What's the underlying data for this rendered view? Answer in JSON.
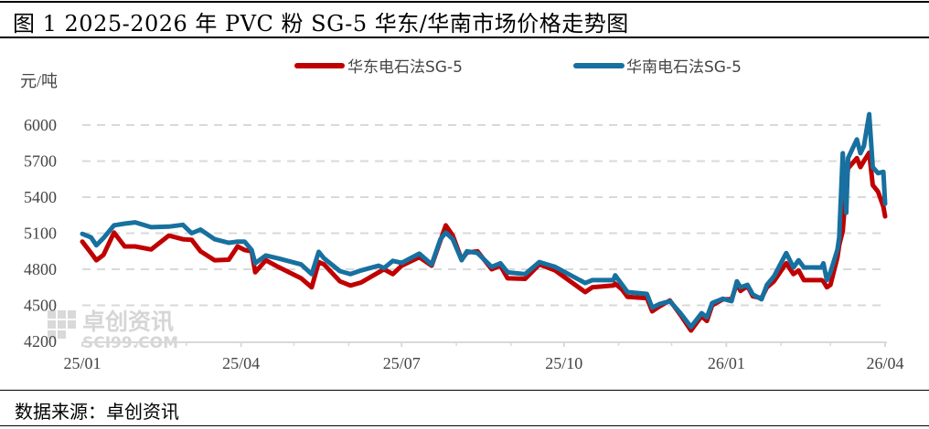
{
  "title": "图 1 2025-2026 年 PVC 粉 SG-5 华东/华南市场价格走势图",
  "footer": "数据来源：卓创资讯",
  "watermark": {
    "name": "卓创资讯",
    "url": "SCI99.COM"
  },
  "chart_data": {
    "type": "line",
    "title": "图 1 2025-2026 年 PVC 粉 SG-5 华东/华南市场价格走势图",
    "ylabel": "元/吨",
    "ylim": [
      4200,
      6000
    ],
    "yticks": [
      "4200",
      "4500",
      "4800",
      "5100",
      "5400",
      "5700",
      "6000"
    ],
    "xticks": [
      {
        "label": "25/01",
        "date": "2025-01-01"
      },
      {
        "label": "25/04",
        "date": "2025-04-01"
      },
      {
        "label": "25/07",
        "date": "2025-07-01"
      },
      {
        "label": "25/10",
        "date": "2025-10-01"
      },
      {
        "label": "26/01",
        "date": "2026-01-01"
      },
      {
        "label": "26/04",
        "date": "2026-04-01"
      }
    ],
    "xlim": [
      "2025-01-01",
      "2026-04-01"
    ],
    "grid": "horizontal dashed",
    "legend": "top",
    "x": [
      "2025-01-01",
      "2025-01-06",
      "2025-01-09",
      "2025-01-13",
      "2025-01-19",
      "2025-01-25",
      "2025-01-31",
      "2025-02-09",
      "2025-02-19",
      "2025-02-27",
      "2025-03-04",
      "2025-03-09",
      "2025-03-17",
      "2025-03-25",
      "2025-03-30",
      "2025-04-03",
      "2025-04-07",
      "2025-04-09",
      "2025-04-15",
      "2025-04-22",
      "2025-05-05",
      "2025-05-11",
      "2025-05-15",
      "2025-05-18",
      "2025-05-27",
      "2025-06-02",
      "2025-06-08",
      "2025-06-18",
      "2025-06-21",
      "2025-06-26",
      "2025-07-01",
      "2025-07-11",
      "2025-07-18",
      "2025-07-23",
      "2025-07-26",
      "2025-07-30",
      "2025-08-04",
      "2025-08-07",
      "2025-08-13",
      "2025-08-21",
      "2025-08-26",
      "2025-08-30",
      "2025-09-09",
      "2025-09-17",
      "2025-09-26",
      "2025-10-13",
      "2025-10-17",
      "2025-10-29",
      "2025-10-30",
      "2025-11-03",
      "2025-11-06",
      "2025-11-17",
      "2025-11-20",
      "2025-11-24",
      "2025-11-30",
      "2025-12-06",
      "2025-12-12",
      "2025-12-18",
      "2025-12-21",
      "2025-12-24",
      "2025-12-30",
      "2026-01-04",
      "2026-01-07",
      "2026-01-09",
      "2026-01-13",
      "2026-01-16",
      "2026-01-21",
      "2026-01-24",
      "2026-01-28",
      "2026-02-04",
      "2026-02-08",
      "2026-02-11",
      "2026-02-14",
      "2026-02-24",
      "2026-02-25",
      "2026-02-27",
      "2026-03-01",
      "2026-03-05",
      "2026-03-06",
      "2026-03-08",
      "2026-03-10",
      "2026-03-11",
      "2026-03-16",
      "2026-03-18",
      "2026-03-20",
      "2026-03-23",
      "2026-03-25",
      "2026-03-28",
      "2026-03-31",
      "2026-04-01"
    ],
    "series": [
      {
        "name": "华东电石法SG-5",
        "color": "#C00000",
        "values": [
          5030,
          4935,
          4875,
          4920,
          5105,
          4990,
          4990,
          4965,
          5080,
          5050,
          5045,
          4950,
          4875,
          4880,
          4990,
          4960,
          4950,
          4775,
          4875,
          4820,
          4725,
          4650,
          4860,
          4840,
          4700,
          4665,
          4690,
          4775,
          4800,
          4760,
          4830,
          4900,
          4830,
          5040,
          5165,
          5080,
          4880,
          4940,
          4950,
          4800,
          4830,
          4725,
          4720,
          4840,
          4790,
          4610,
          4650,
          4665,
          4680,
          4630,
          4570,
          4560,
          4450,
          4490,
          4540,
          4420,
          4290,
          4410,
          4370,
          4500,
          4550,
          4550,
          4680,
          4620,
          4660,
          4575,
          4560,
          4650,
          4700,
          4850,
          4760,
          4790,
          4710,
          4710,
          4700,
          4650,
          4670,
          4900,
          5000,
          5120,
          5500,
          5640,
          5725,
          5650,
          5700,
          5770,
          5500,
          5445,
          5320,
          5240
        ]
      },
      {
        "name": "华南电石法SG-5",
        "color": "#17709F",
        "values": [
          5095,
          5065,
          5000,
          5060,
          5165,
          5180,
          5190,
          5150,
          5155,
          5170,
          5100,
          5130,
          5050,
          5020,
          5030,
          5030,
          4960,
          4850,
          4915,
          4890,
          4840,
          4760,
          4945,
          4890,
          4785,
          4760,
          4790,
          4830,
          4810,
          4870,
          4853,
          4930,
          4840,
          5050,
          5105,
          5050,
          4875,
          4950,
          4935,
          4820,
          4850,
          4775,
          4760,
          4860,
          4820,
          4685,
          4710,
          4710,
          4750,
          4670,
          4610,
          4595,
          4480,
          4510,
          4535,
          4435,
          4320,
          4435,
          4400,
          4520,
          4555,
          4535,
          4700,
          4650,
          4670,
          4590,
          4550,
          4670,
          4740,
          4935,
          4815,
          4875,
          4815,
          4815,
          4850,
          4710,
          4775,
          4965,
          5065,
          5765,
          5270,
          5725,
          5880,
          5765,
          5825,
          6090,
          5650,
          5600,
          5610,
          5345
        ]
      }
    ]
  }
}
